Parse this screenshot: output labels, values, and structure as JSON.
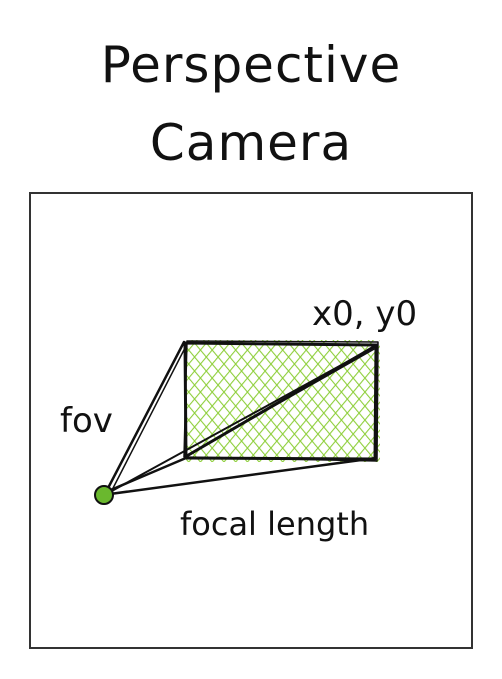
{
  "title": {
    "line1": "Perspective",
    "line2": "Camera"
  },
  "labels": {
    "fov": "fov",
    "principal_point": "x0, y0",
    "focal_length": "focal length"
  },
  "colors": {
    "ink": "#111111",
    "hatch": "#8fcf3c",
    "camera_dot": "#6ab82e",
    "frame": "#333333"
  }
}
